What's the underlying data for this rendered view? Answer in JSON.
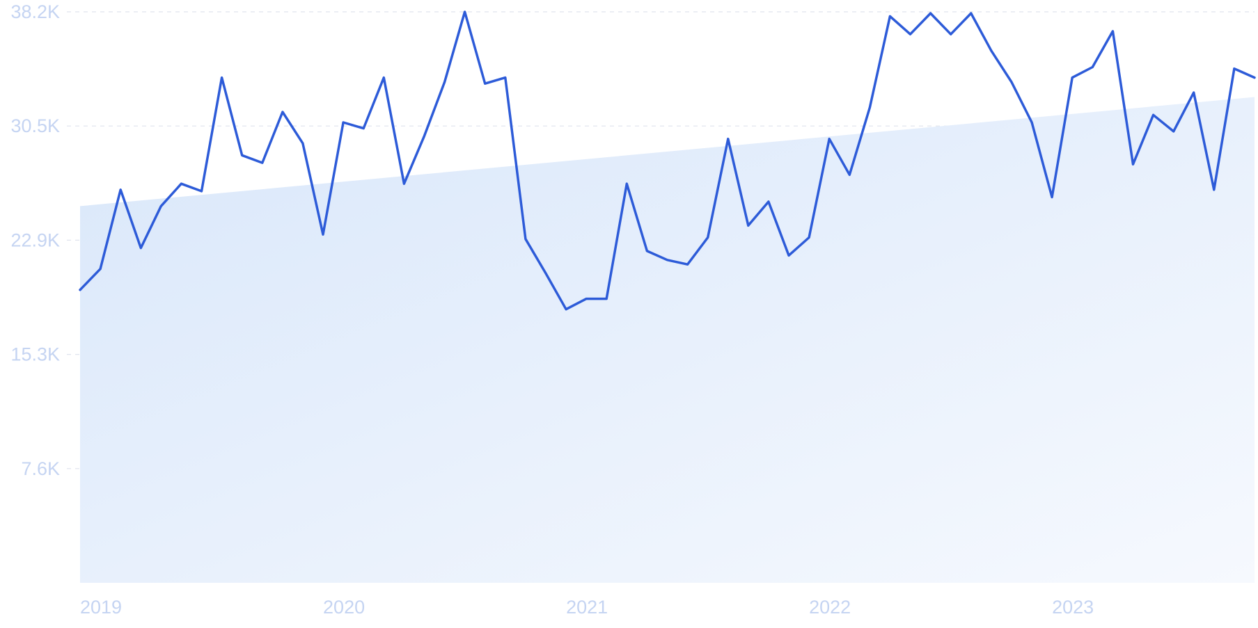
{
  "chart_data": {
    "type": "line",
    "title": "",
    "xlabel": "",
    "ylabel": "",
    "x_ticks": [
      "2019",
      "2020",
      "2021",
      "2022",
      "2023"
    ],
    "y_ticks": [
      "7.6K",
      "15.3K",
      "22.9K",
      "30.5K",
      "38.2K"
    ],
    "ylim": [
      0,
      38200
    ],
    "xlim": [
      "2019-01",
      "2023-11"
    ],
    "grid": true,
    "colors": {
      "line": "#2d5bd8",
      "grid": "#dfe4ee",
      "tick_label": "#c5d4f2",
      "area_from": "#d9e7fa",
      "area_to": "#f6f9fe"
    },
    "trend": {
      "start": 25200,
      "end": 32500
    },
    "series": [
      {
        "x": [
          "2019-01",
          "2019-02",
          "2019-03",
          "2019-04",
          "2019-05",
          "2019-06",
          "2019-07",
          "2019-08",
          "2019-09",
          "2019-10",
          "2019-11",
          "2019-12",
          "2020-01",
          "2020-02",
          "2020-03",
          "2020-04",
          "2020-05",
          "2020-06",
          "2020-07",
          "2020-08",
          "2020-09",
          "2020-10",
          "2020-11",
          "2020-12",
          "2021-01",
          "2021-02",
          "2021-03",
          "2021-04",
          "2021-05",
          "2021-06",
          "2021-07",
          "2021-08",
          "2021-09",
          "2021-10",
          "2021-11",
          "2021-12",
          "2022-01",
          "2022-02",
          "2022-03",
          "2022-04",
          "2022-05",
          "2022-06",
          "2022-07",
          "2022-08",
          "2022-09",
          "2022-10",
          "2022-11",
          "2022-12",
          "2023-01",
          "2023-02",
          "2023-03",
          "2023-04",
          "2023-05",
          "2023-06",
          "2023-07",
          "2023-08",
          "2023-09",
          "2023-10",
          "2023-11"
        ],
        "values": [
          19600,
          21000,
          26300,
          22400,
          25200,
          26700,
          26200,
          33800,
          28600,
          28100,
          31500,
          29400,
          23300,
          30800,
          30400,
          33800,
          26700,
          29900,
          33500,
          38200,
          33400,
          33800,
          23000,
          20700,
          18300,
          19000,
          19000,
          26700,
          22200,
          21600,
          21300,
          23100,
          29700,
          23900,
          25500,
          21900,
          23100,
          29700,
          27300,
          31800,
          37900,
          36700,
          38100,
          36700,
          38100,
          35600,
          33500,
          30800,
          25800,
          33800,
          34500,
          36900,
          28000,
          31300,
          30200,
          32800,
          26300,
          34400,
          33800
        ]
      }
    ]
  }
}
